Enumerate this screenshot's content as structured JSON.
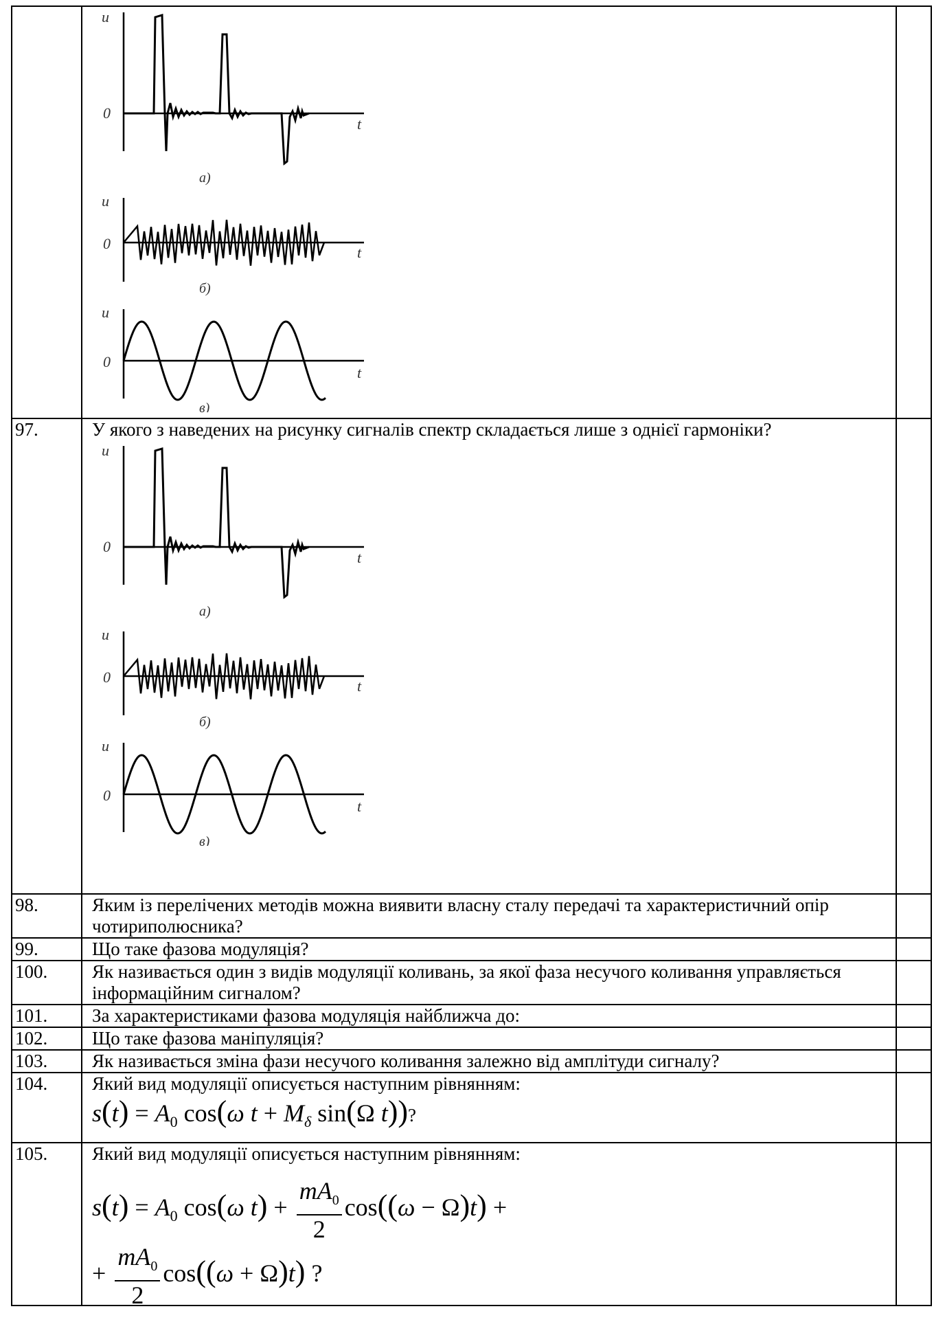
{
  "figure": {
    "y_label": "u",
    "zero_label": "0",
    "t_label": "t",
    "panel_labels": [
      "а)",
      "б)",
      "в)"
    ]
  },
  "rows": [
    {
      "num": "",
      "text": ""
    },
    {
      "num": "97.",
      "text": "У якого з наведених на рисунку сигналів спектр складається лише з однієї гармоніки?"
    },
    {
      "num": "98.",
      "text": "Яким із перелічених методів можна виявити власну сталу передачі та характеристичний опір чотириполюсника?"
    },
    {
      "num": "99.",
      "text": "Що таке фазова модуляція?"
    },
    {
      "num": "100.",
      "text": "Як називається один з видів модуляції коливань, за якої фаза несучого коливання управляється інформаційним сигналом?"
    },
    {
      "num": "101.",
      "text": "За характеристиками фазова модуляція найближча до:"
    },
    {
      "num": "102.",
      "text": "Що таке фазова маніпуляція?"
    },
    {
      "num": "103.",
      "text": "Як називається зміна фази несучого коливання залежно від амплітуди сигналу?"
    },
    {
      "num": "104.",
      "text": "Який вид модуляції описується наступним рівнянням:"
    },
    {
      "num": "105.",
      "text": "Який вид модуляції описується наступним рівнянням:"
    }
  ],
  "equations": {
    "eq104": "s(t) = A₀ cos(ω t + M_δ sin(Ω t))?",
    "eq105_line1": "s(t) = A₀ cos(ω t) + mA₀/2 cos((ω − Ω)t) +",
    "eq105_line2": "+ mA₀/2 cos((ω + Ω)t) ?"
  }
}
